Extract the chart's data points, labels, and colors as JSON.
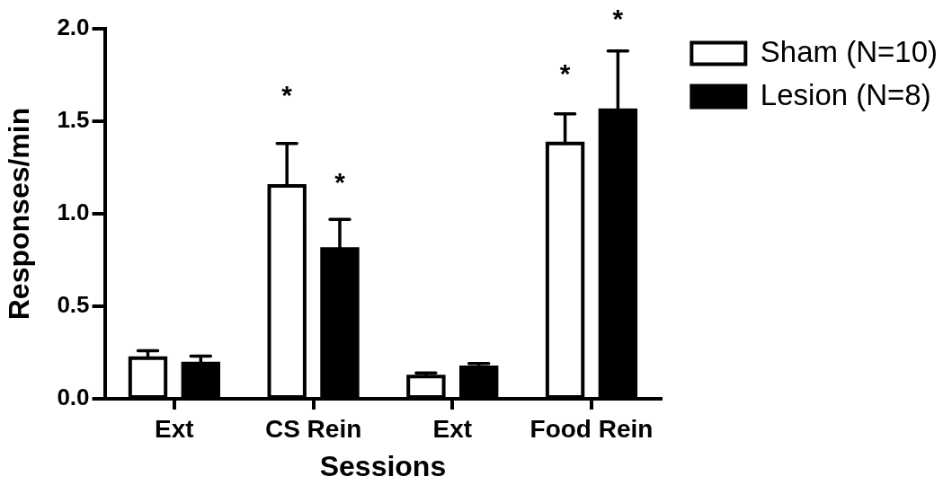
{
  "chart_data": {
    "type": "bar",
    "xlabel": "Sessions",
    "ylabel": "Responses/min",
    "categories": [
      "Ext",
      "CS Rein",
      "Ext",
      "Food Rein"
    ],
    "series": [
      {
        "name": "Sham (N=10)",
        "color": "#ffffff",
        "values": [
          0.22,
          1.15,
          0.12,
          1.38
        ],
        "errors": [
          [
            0.22,
            0.26
          ],
          [
            1.15,
            1.38
          ],
          [
            0.12,
            0.14
          ],
          [
            1.38,
            1.54
          ]
        ]
      },
      {
        "name": "Lesion (N=8)",
        "color": "#000000",
        "values": [
          0.19,
          0.81,
          0.17,
          1.56
        ],
        "errors": [
          [
            0.19,
            0.23
          ],
          [
            0.81,
            0.97
          ],
          [
            0.17,
            0.19
          ],
          [
            1.56,
            1.88
          ]
        ]
      }
    ],
    "ylim": [
      0,
      2
    ],
    "yticks": [
      {
        "value": 0,
        "label": "0.0"
      },
      {
        "value": 0.5,
        "label": "0.5"
      },
      {
        "value": 1,
        "label": "1.0"
      },
      {
        "value": 1.5,
        "label": "1.5"
      },
      {
        "value": 2,
        "label": "2.0"
      }
    ],
    "legend": "top right",
    "annotations": [
      "*",
      "*",
      "*",
      "*"
    ]
  }
}
